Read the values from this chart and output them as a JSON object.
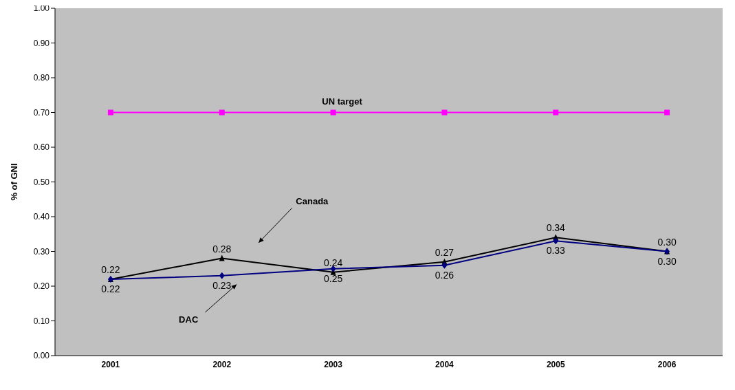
{
  "chart_data": {
    "type": "line",
    "ylabel": "% of GNI",
    "categories": [
      "2001",
      "2002",
      "2003",
      "2004",
      "2005",
      "2006"
    ],
    "ylim": [
      0,
      1
    ],
    "yticks": [
      {
        "value": 0,
        "label": "0.00"
      },
      {
        "value": 0.1,
        "label": "0.10"
      },
      {
        "value": 0.2,
        "label": "0.20"
      },
      {
        "value": 0.3,
        "label": "0.30"
      },
      {
        "value": 0.4,
        "label": "0.40"
      },
      {
        "value": 0.5,
        "label": "0.50"
      },
      {
        "value": 0.6,
        "label": "0.60"
      },
      {
        "value": 0.7,
        "label": "0.70"
      },
      {
        "value": 0.8,
        "label": "0.80"
      },
      {
        "value": 0.9,
        "label": "0.90"
      },
      {
        "value": 1,
        "label": "1.00"
      }
    ],
    "grid": false,
    "legend": false,
    "series": [
      {
        "name": "Canada",
        "color": "#000000",
        "marker": "triangle",
        "values": [
          0.22,
          0.28,
          0.24,
          0.27,
          0.34,
          0.3
        ],
        "value_labels": [
          "0.22",
          "0.28",
          "0.24",
          "0.27",
          "0.34",
          "0.30"
        ]
      },
      {
        "name": "DAC",
        "color": "#000080",
        "marker": "diamond",
        "values": [
          0.22,
          0.23,
          0.25,
          0.26,
          0.33,
          0.3
        ],
        "value_labels": [
          "0.22",
          "0.23",
          "0.25",
          "0.26",
          "0.33",
          "0.30"
        ]
      },
      {
        "name": "UN target",
        "color": "#ff00ff",
        "marker": "square",
        "values": [
          0.7,
          0.7,
          0.7,
          0.7,
          0.7,
          0.7
        ]
      }
    ]
  }
}
